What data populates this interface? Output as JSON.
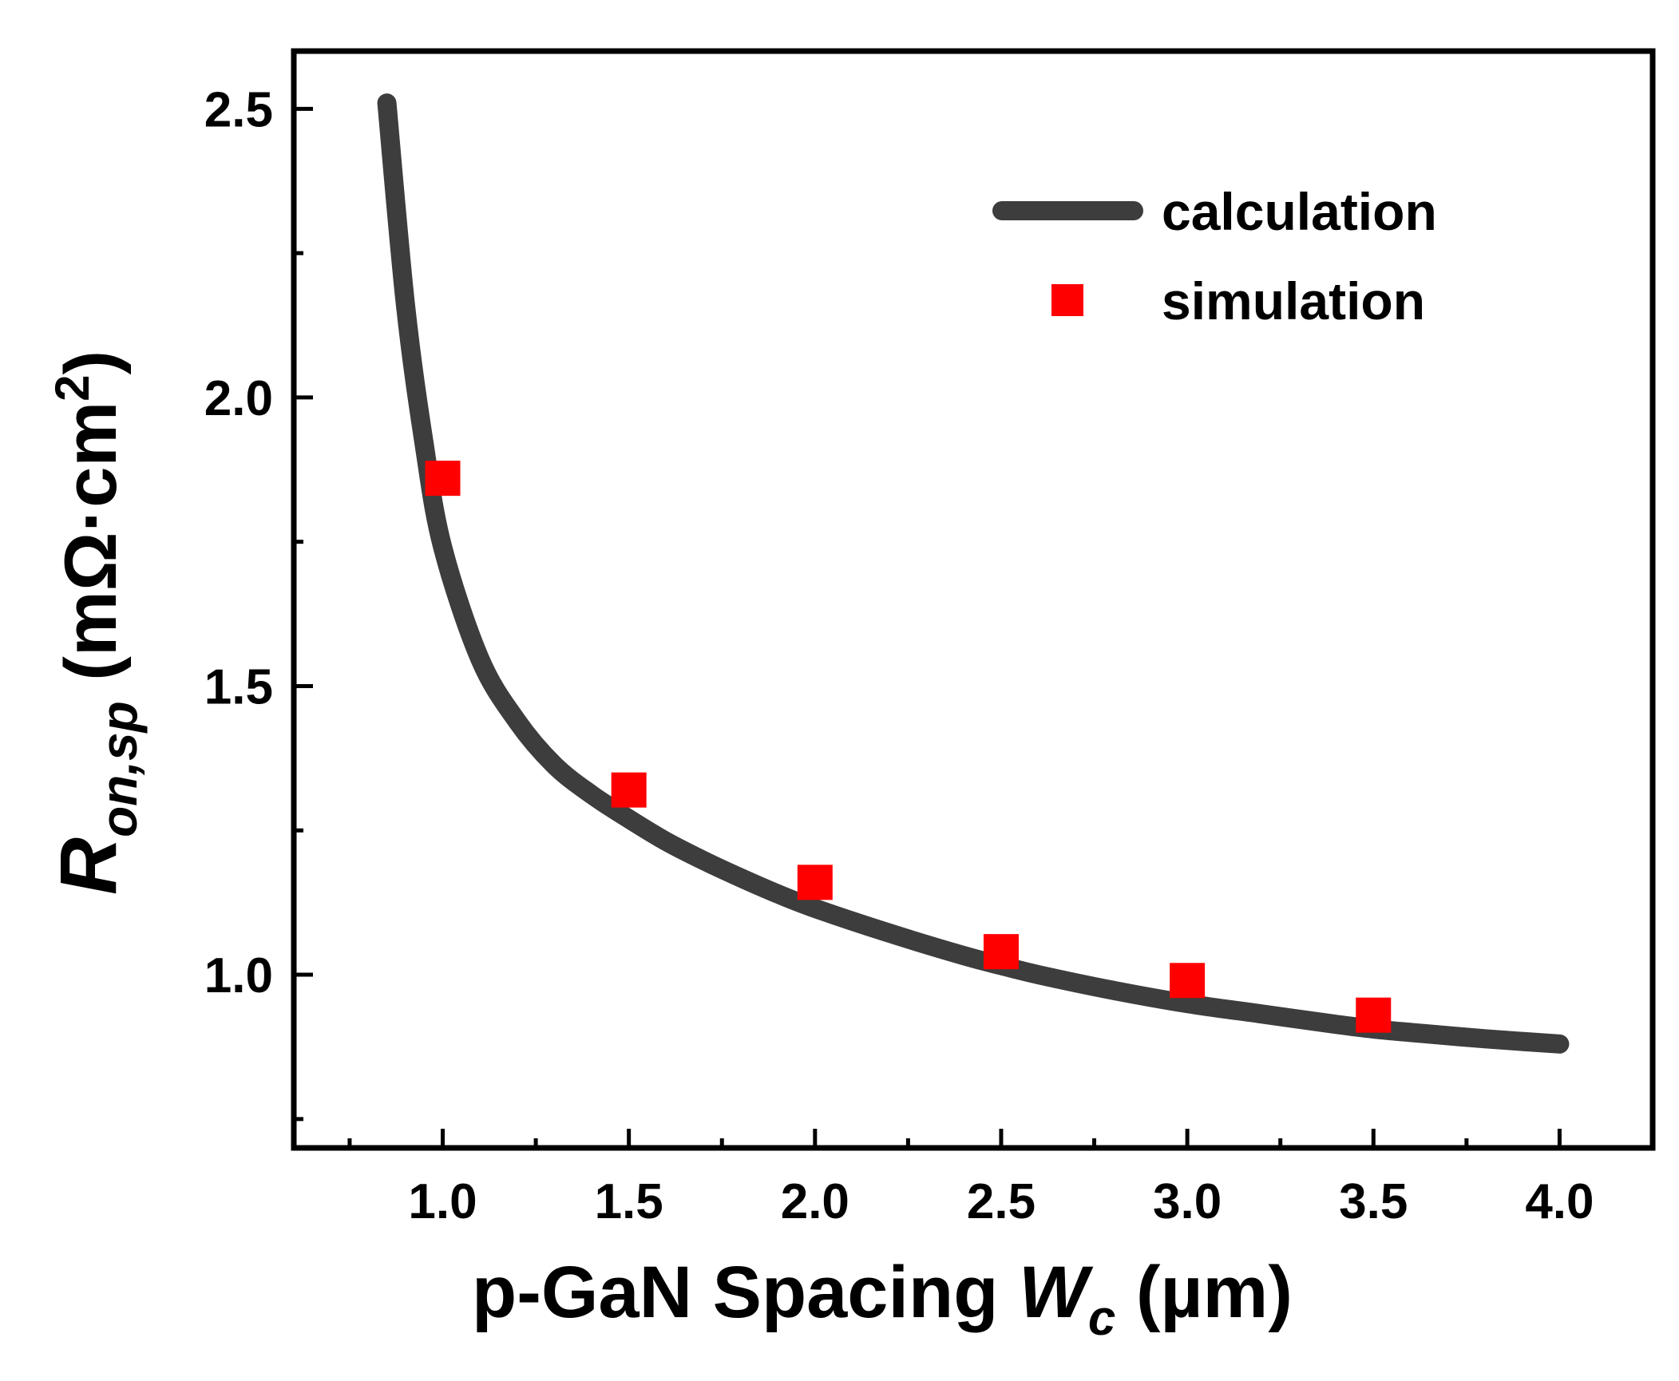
{
  "chart_data": {
    "type": "line",
    "title": "",
    "x_title": {
      "prefix": "p-GaN Spacing ",
      "var": "W",
      "sub": "c",
      "suffix": " (µm)"
    },
    "y_title": {
      "var": "R",
      "sub": "on,sp",
      "unit_open": " (mΩ·cm",
      "unit_sup": "2",
      "unit_close": ")"
    },
    "xlim": [
      0.6,
      4.25
    ],
    "ylim": [
      0.7,
      2.6
    ],
    "x_ticks": [
      1.0,
      1.5,
      2.0,
      2.5,
      3.0,
      3.5,
      4.0
    ],
    "x_tick_labels": [
      "1.0",
      "1.5",
      "2.0",
      "2.5",
      "3.0",
      "3.5",
      "4.0"
    ],
    "y_ticks": [
      1.0,
      1.5,
      2.0,
      2.5
    ],
    "y_tick_labels": [
      "1.0",
      "1.5",
      "2.0",
      "2.5"
    ],
    "series": [
      {
        "name": "calculation",
        "kind": "line",
        "color": "#3d3d3d",
        "x": [
          0.85,
          0.9,
          0.95,
          1.0,
          1.1,
          1.2,
          1.3,
          1.4,
          1.5,
          1.6,
          1.7,
          1.8,
          1.9,
          2.0,
          2.2,
          2.4,
          2.5,
          2.6,
          2.8,
          3.0,
          3.2,
          3.4,
          3.5,
          3.6,
          3.8,
          4.0
        ],
        "y": [
          2.51,
          2.16,
          1.92,
          1.74,
          1.547,
          1.439,
          1.363,
          1.312,
          1.27,
          1.231,
          1.198,
          1.168,
          1.14,
          1.115,
          1.072,
          1.033,
          1.016,
          1.0,
          0.973,
          0.95,
          0.932,
          0.914,
          0.906,
          0.9,
          0.889,
          0.88
        ]
      },
      {
        "name": "simulation",
        "kind": "scatter",
        "color": "#ff0000",
        "x": [
          1.0,
          1.5,
          2.0,
          2.5,
          3.0,
          3.5
        ],
        "y": [
          1.86,
          1.32,
          1.16,
          1.04,
          0.99,
          0.93
        ]
      }
    ],
    "legend": {
      "position": "top-right",
      "entries": [
        "calculation",
        "simulation"
      ]
    }
  }
}
